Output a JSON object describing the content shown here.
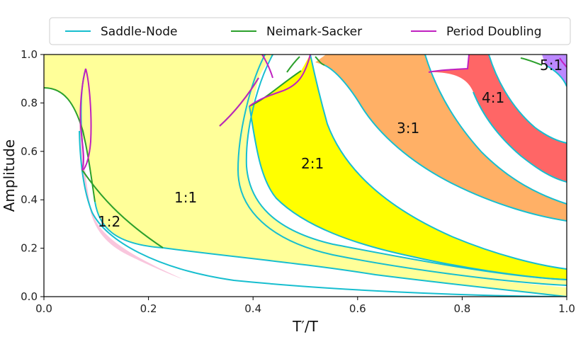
{
  "chart_data": {
    "type": "area",
    "xlabel": "T′/T",
    "ylabel": "Amplitude",
    "xlim": [
      0.0,
      1.0
    ],
    "ylim": [
      0.0,
      1.0
    ],
    "x_ticks": [
      "0.0",
      "0.2",
      "0.4",
      "0.6",
      "0.8",
      "1.0"
    ],
    "y_ticks": [
      "0.0",
      "0.2",
      "0.4",
      "0.6",
      "0.8",
      "1.0"
    ],
    "grid": false,
    "legend_position": "top",
    "legend": [
      {
        "label": "Saddle-Node",
        "color": "#17becf"
      },
      {
        "label": "Neimark-Sacker",
        "color": "#2ca02c"
      },
      {
        "label": "Period Doubling",
        "color": "#c020c0"
      }
    ],
    "regions": [
      {
        "label": "1:1",
        "label_at": [
          0.27,
          0.41
        ],
        "fill": "#ffff99",
        "boundary": [
          [
            0.0,
            0.86
          ],
          [
            0.03,
            0.85
          ],
          [
            0.06,
            0.78
          ],
          [
            0.085,
            0.68
          ],
          [
            0.1,
            0.58
          ],
          [
            0.115,
            0.52
          ],
          [
            0.15,
            0.39
          ],
          [
            0.18,
            0.31
          ],
          [
            0.2,
            0.26
          ],
          [
            0.23,
            0.21
          ],
          [
            0.31,
            0.2
          ],
          [
            0.4,
            0.19
          ],
          [
            0.5,
            0.17
          ],
          [
            0.6,
            0.15
          ],
          [
            0.7,
            0.12
          ],
          [
            0.8,
            0.09
          ],
          [
            0.9,
            0.05
          ],
          [
            0.97,
            0.02
          ],
          [
            1.0,
            0.0
          ],
          [
            0.9,
            0.04
          ],
          [
            0.8,
            0.07
          ],
          [
            0.7,
            0.1
          ],
          [
            0.6,
            0.12
          ],
          [
            0.5,
            0.14
          ],
          [
            0.4,
            0.16
          ],
          [
            0.35,
            0.16
          ],
          [
            0.3,
            0.18
          ],
          [
            0.25,
            0.2
          ],
          [
            0.2,
            0.21
          ],
          [
            0.15,
            0.23
          ],
          [
            0.13,
            0.28
          ],
          [
            0.115,
            0.36
          ],
          [
            0.11,
            0.44
          ],
          [
            0.12,
            0.5
          ],
          [
            0.105,
            0.55
          ],
          [
            0.1,
            0.63
          ],
          [
            0.09,
            0.75
          ],
          [
            0.08,
            0.93
          ],
          [
            0.075,
            0.85
          ],
          [
            0.065,
            0.72
          ],
          [
            0.06,
            0.0
          ],
          [
            0.0,
            0.0
          ]
        ],
        "boundary_note_is_data": true
      }
    ]
  }
}
